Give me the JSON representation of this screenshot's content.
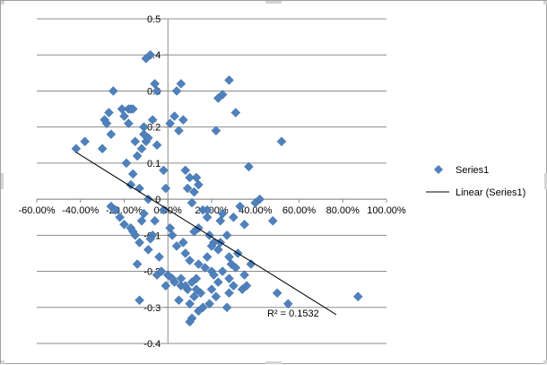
{
  "chart_data": {
    "type": "scatter",
    "title": "",
    "xlabel": "",
    "ylabel": "",
    "xlim": [
      -0.6,
      1.0
    ],
    "ylim": [
      -0.4,
      0.5
    ],
    "x_ticks": [
      -0.6,
      -0.4,
      -0.2,
      0.0,
      0.2,
      0.4,
      0.6,
      0.8,
      1.0
    ],
    "x_tick_labels": [
      "-60.00%",
      "-40.00%",
      "-20.00%",
      "0.00%",
      "20.00%",
      "40.00%",
      "60.00%",
      "80.00%",
      "100.00%"
    ],
    "y_ticks": [
      -0.4,
      -0.3,
      -0.2,
      -0.1,
      0.0,
      0.1,
      0.2,
      0.3,
      0.4,
      0.5
    ],
    "y_tick_labels": [
      "-0.4",
      "-0.3",
      "-0.2",
      "-0.1",
      "0",
      "0.1",
      "0.2",
      "0.3",
      "0.4",
      "0.5"
    ],
    "grid": "horizontal",
    "legend_position": "right",
    "marker_color": "#4f81bd",
    "trend_color": "#000000",
    "series": [
      {
        "name": "Series1",
        "x": [
          -0.42,
          -0.38,
          -0.3,
          -0.29,
          -0.28,
          -0.26,
          -0.27,
          -0.25,
          -0.2,
          -0.18,
          -0.21,
          -0.17,
          -0.16,
          -0.14,
          -0.18,
          -0.15,
          -0.16,
          -0.19,
          -0.17,
          -0.13,
          -0.11,
          -0.11,
          -0.08,
          -0.1,
          -0.12,
          -0.1,
          -0.09,
          -0.06,
          -0.05,
          -0.07,
          -0.05,
          -0.02,
          -0.01,
          0.01,
          0.03,
          0.05,
          0.07,
          0.09,
          0.11,
          0.13,
          0.12,
          0.14,
          0.1,
          0.06,
          0.08,
          0.04,
          0.25,
          0.22,
          0.28,
          0.31,
          0.37,
          0.23,
          0.52,
          0.48,
          0.4,
          0.42,
          0.18,
          0.16,
          0.14,
          0.12,
          0.19,
          0.27,
          0.24,
          0.21,
          0.2,
          0.23,
          0.18,
          0.28,
          0.32,
          0.29,
          0.14,
          0.1,
          0.08,
          0.07,
          0.04,
          0.02,
          0.01,
          0.2,
          0.17,
          0.21,
          0.25,
          0.28,
          0.35,
          0.3,
          0.31,
          0.34,
          0.13,
          0.11,
          0.09,
          0.06,
          0.03,
          0.0,
          0.12,
          0.15,
          0.1,
          0.05,
          0.22,
          0.28,
          0.36,
          0.38,
          0.25,
          0.18,
          0.24,
          0.3,
          0.35,
          0.33,
          0.5,
          0.55,
          0.14,
          0.11,
          0.16,
          0.19,
          0.1,
          0.13,
          0.08,
          0.06,
          0.23,
          0.2,
          0.27,
          0.87,
          -0.26,
          -0.24,
          -0.22,
          -0.2,
          -0.17,
          -0.15,
          -0.13,
          -0.09,
          -0.07,
          -0.12,
          -0.16,
          -0.14,
          -0.05,
          -0.03,
          -0.01,
          0.02,
          -0.04,
          -0.08,
          -0.11,
          -0.09,
          -0.06,
          -0.02,
          -0.13
        ],
        "y": [
          0.14,
          0.16,
          0.14,
          0.22,
          0.21,
          0.18,
          0.24,
          0.3,
          0.23,
          0.25,
          0.25,
          0.25,
          0.25,
          0.12,
          0.21,
          0.16,
          0.07,
          0.1,
          0.04,
          0.03,
          0.2,
          0.18,
          0.4,
          0.39,
          0.14,
          0.16,
          0.17,
          0.32,
          0.3,
          0.22,
          0.15,
          0.08,
          0.03,
          0.21,
          0.23,
          0.19,
          0.22,
          0.03,
          -0.01,
          0.06,
          0.02,
          0.04,
          0.06,
          0.32,
          0.08,
          0.3,
          0.29,
          0.19,
          0.33,
          0.24,
          0.09,
          0.28,
          0.16,
          -0.06,
          -0.01,
          0.0,
          -0.05,
          -0.03,
          -0.08,
          -0.09,
          -0.1,
          -0.1,
          -0.12,
          -0.12,
          -0.13,
          -0.14,
          -0.16,
          -0.16,
          -0.15,
          -0.18,
          -0.18,
          -0.17,
          -0.15,
          -0.12,
          -0.13,
          -0.1,
          -0.08,
          -0.2,
          -0.19,
          -0.21,
          -0.2,
          -0.22,
          -0.21,
          -0.24,
          -0.19,
          -0.25,
          -0.22,
          -0.23,
          -0.25,
          -0.24,
          -0.23,
          -0.21,
          -0.27,
          -0.26,
          -0.29,
          -0.28,
          -0.27,
          -0.26,
          -0.24,
          -0.18,
          -0.04,
          -0.03,
          -0.06,
          -0.05,
          -0.07,
          -0.02,
          -0.26,
          -0.29,
          -0.31,
          -0.33,
          -0.3,
          -0.29,
          -0.34,
          -0.25,
          -0.24,
          -0.22,
          -0.23,
          -0.25,
          -0.3,
          -0.27,
          -0.02,
          -0.03,
          -0.05,
          -0.07,
          -0.08,
          -0.1,
          -0.12,
          -0.14,
          -0.1,
          -0.06,
          -0.09,
          -0.18,
          -0.21,
          -0.2,
          -0.24,
          -0.22,
          -0.16,
          -0.11,
          -0.04,
          0.0,
          -0.06,
          -0.03,
          -0.28
        ]
      }
    ],
    "trendline": {
      "name": "Linear (Series1)",
      "type": "linear",
      "x_start": -0.42,
      "y_start": 0.13,
      "x_end": 0.77,
      "y_end": -0.32,
      "r_squared_label": "R² = 0.1532"
    }
  }
}
